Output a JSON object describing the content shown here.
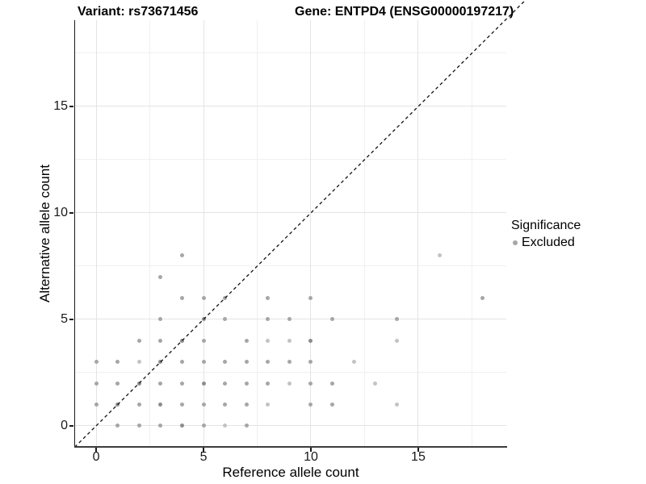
{
  "header": {
    "title_left": "Variant: rs73671456",
    "title_right": "Gene: ENTPD4 (ENSG00000197217)"
  },
  "legend": {
    "title": "Significance",
    "items": [
      {
        "label": "Excluded",
        "color": "#a6a6a6"
      }
    ]
  },
  "colors": {
    "background": "#ffffff",
    "grid_major": "#e4e4e4",
    "grid_minor": "#f0f0f0",
    "axis_text": "#1a1a1a",
    "identity_line": "#111111"
  },
  "chart_data": {
    "type": "scatter",
    "title": "Variant: rs73671456 — Gene: ENTPD4 (ENSG00000197217)",
    "xlabel": "Reference allele count",
    "ylabel": "Alternative allele count",
    "xlim": [
      -0.98,
      19.1
    ],
    "ylim": [
      -0.95,
      19.05
    ],
    "x_ticks": [
      0,
      5,
      10,
      15
    ],
    "y_ticks": [
      0,
      5,
      10,
      15
    ],
    "x_minor": [
      2.5,
      7.5,
      12.5,
      17.5
    ],
    "y_minor": [
      2.5,
      7.5,
      12.5,
      17.5
    ],
    "grid": true,
    "legend_position": "right",
    "identity_line": {
      "style": "dashed",
      "slope": 1,
      "intercept": 0
    },
    "shade_colors": {
      "1": "#c3c3c3",
      "2": "#a6a6a6",
      "3": "#8c8c8c"
    },
    "series": [
      {
        "name": "Excluded",
        "note": "points are [reference_allele_count, alternative_allele_count, shade 1=light 2=medium 3=dark]",
        "points": [
          [
            1,
            0,
            2
          ],
          [
            2,
            0,
            2
          ],
          [
            3,
            0,
            2
          ],
          [
            4,
            0,
            3
          ],
          [
            5,
            0,
            2
          ],
          [
            6,
            0,
            1
          ],
          [
            7,
            0,
            2
          ],
          [
            0,
            1,
            2
          ],
          [
            1,
            1,
            3
          ],
          [
            2,
            1,
            2
          ],
          [
            3,
            1,
            3
          ],
          [
            4,
            1,
            2
          ],
          [
            5,
            1,
            2
          ],
          [
            6,
            1,
            2
          ],
          [
            7,
            1,
            2
          ],
          [
            8,
            1,
            1
          ],
          [
            10,
            1,
            2
          ],
          [
            11,
            1,
            2
          ],
          [
            14,
            1,
            1
          ],
          [
            0,
            2,
            2
          ],
          [
            1,
            2,
            2
          ],
          [
            2,
            2,
            3
          ],
          [
            3,
            2,
            2
          ],
          [
            4,
            2,
            2
          ],
          [
            5,
            2,
            3
          ],
          [
            6,
            2,
            2
          ],
          [
            7,
            2,
            2
          ],
          [
            8,
            2,
            2
          ],
          [
            9,
            2,
            1
          ],
          [
            10,
            2,
            2
          ],
          [
            11,
            2,
            2
          ],
          [
            13,
            2,
            1
          ],
          [
            0,
            3,
            2
          ],
          [
            1,
            3,
            2
          ],
          [
            2,
            3,
            1
          ],
          [
            3,
            3,
            3
          ],
          [
            4,
            3,
            2
          ],
          [
            5,
            3,
            2
          ],
          [
            6,
            3,
            2
          ],
          [
            7,
            3,
            2
          ],
          [
            8,
            3,
            2
          ],
          [
            9,
            3,
            2
          ],
          [
            10,
            3,
            2
          ],
          [
            12,
            3,
            1
          ],
          [
            2,
            4,
            2
          ],
          [
            3,
            4,
            2
          ],
          [
            4,
            4,
            3
          ],
          [
            5,
            4,
            2
          ],
          [
            7,
            4,
            2
          ],
          [
            8,
            4,
            1
          ],
          [
            9,
            4,
            1
          ],
          [
            10,
            4,
            3
          ],
          [
            14,
            4,
            1
          ],
          [
            3,
            5,
            2
          ],
          [
            5,
            5,
            3
          ],
          [
            6,
            5,
            2
          ],
          [
            8,
            5,
            2
          ],
          [
            9,
            5,
            2
          ],
          [
            11,
            5,
            2
          ],
          [
            14,
            5,
            2
          ],
          [
            4,
            6,
            2
          ],
          [
            5,
            6,
            2
          ],
          [
            6,
            6,
            2
          ],
          [
            8,
            6,
            2
          ],
          [
            10,
            6,
            2
          ],
          [
            18,
            6,
            2
          ],
          [
            3,
            7,
            2
          ],
          [
            4,
            8,
            2
          ],
          [
            16,
            8,
            1
          ]
        ]
      }
    ]
  }
}
